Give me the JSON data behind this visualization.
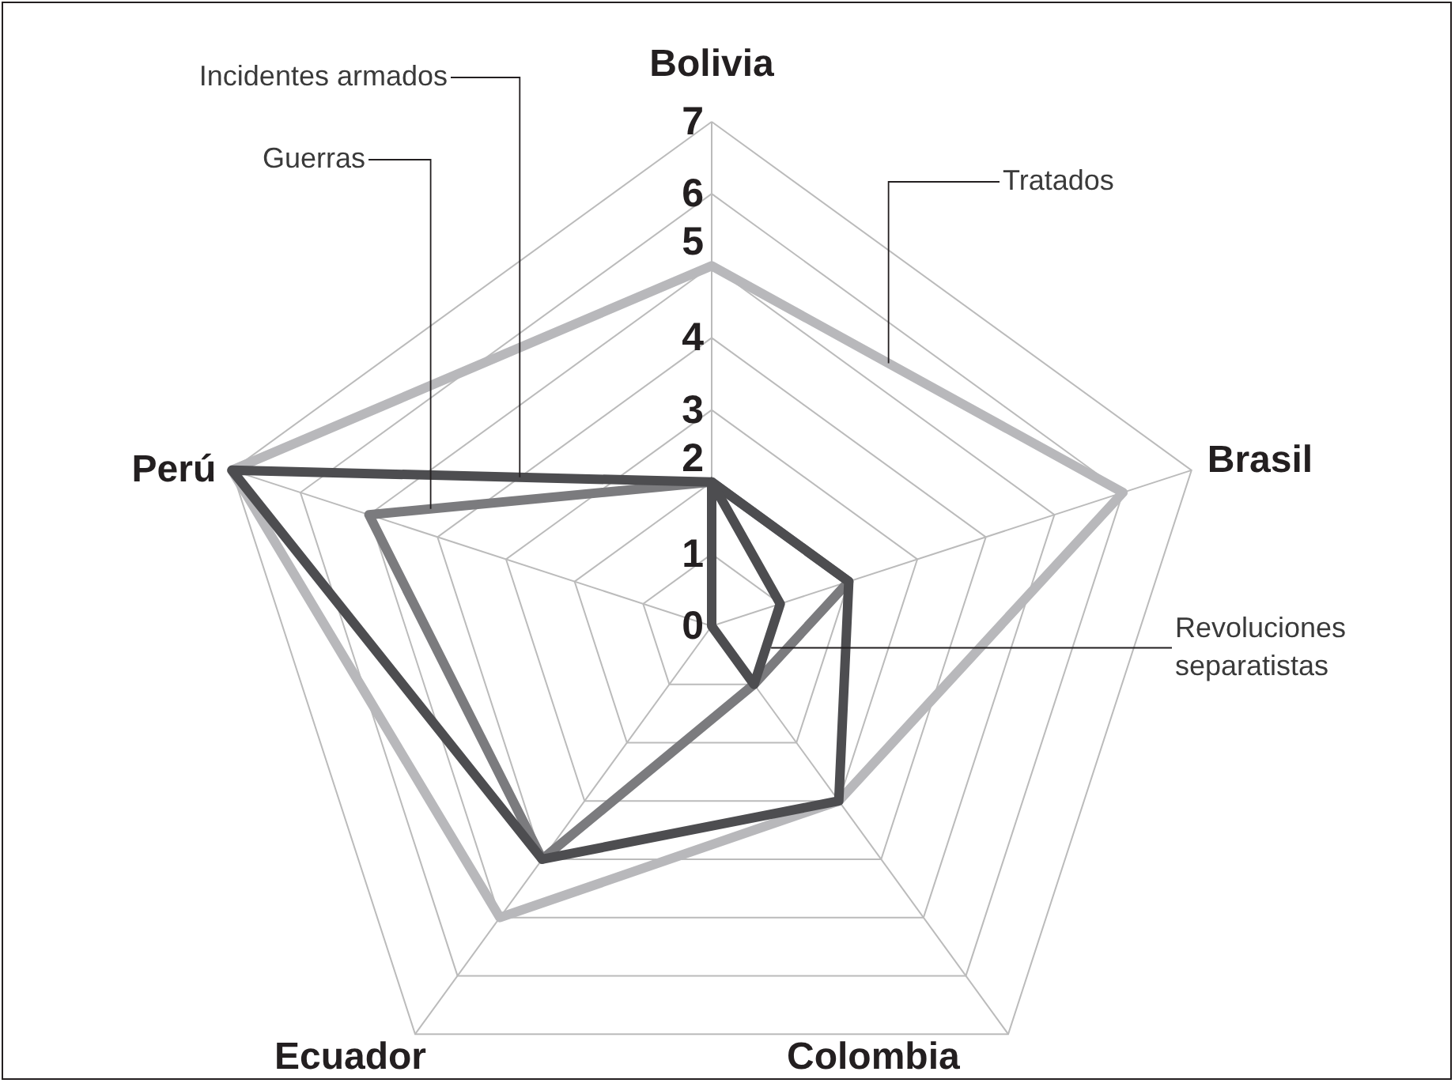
{
  "chart_data": {
    "type": "radar",
    "categories": [
      "Bolivia",
      "Brasil",
      "Colombia",
      "Ecuador",
      "Perú"
    ],
    "ylim": [
      0,
      7
    ],
    "yticks": [
      0,
      1,
      2,
      3,
      4,
      5,
      6,
      7
    ],
    "grid": true,
    "series": [
      {
        "name": "Tratados",
        "color": "#b8b8bb",
        "values": [
          5,
          6,
          3,
          5,
          7
        ]
      },
      {
        "name": "Guerras",
        "color": "#7b7b7e",
        "values": [
          2,
          2,
          1,
          4,
          5
        ]
      },
      {
        "name": "Incidentes armados",
        "color": "#4d4d50",
        "values": [
          2,
          2,
          3,
          4,
          7
        ]
      },
      {
        "name": "Revoluciones separatistas",
        "color": "#4d4d50",
        "values": [
          2,
          1,
          1,
          0,
          0
        ]
      }
    ]
  }
}
